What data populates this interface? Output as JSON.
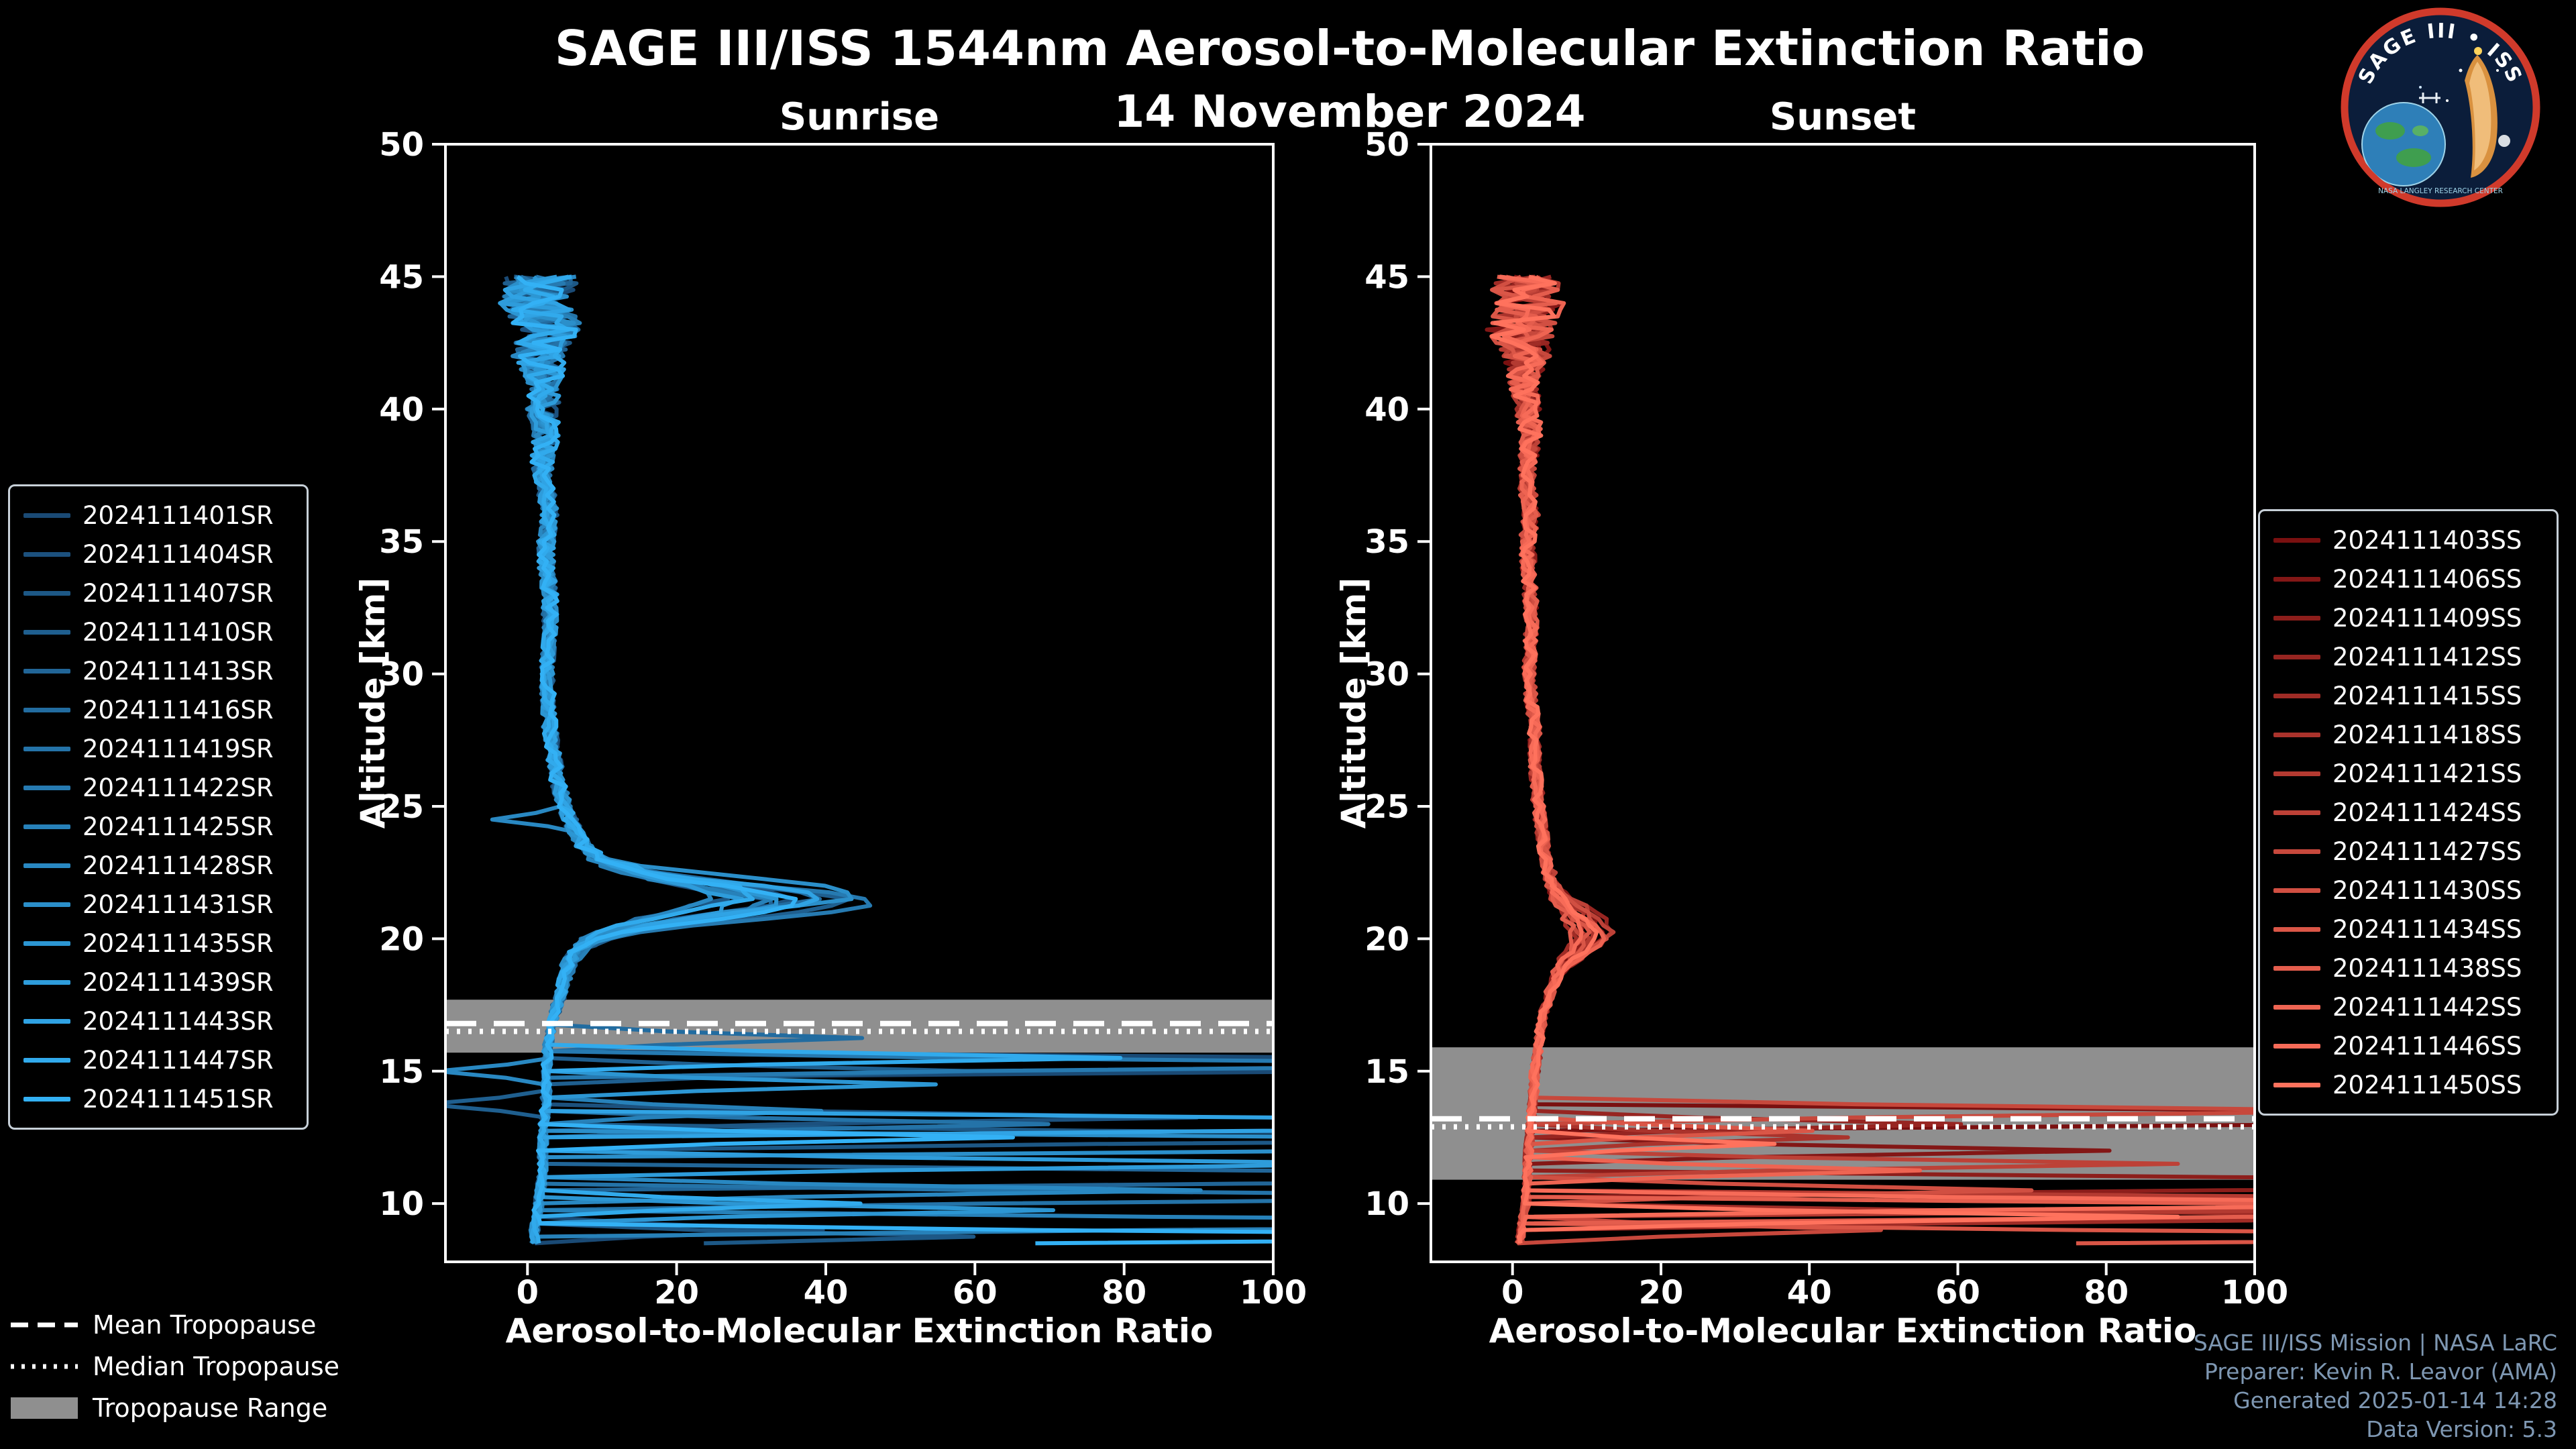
{
  "header": {
    "title": "SAGE III/ISS 1544nm Aerosol-to-Molecular Extinction Ratio",
    "date": "14 November 2024"
  },
  "logo": {
    "title": "SAGE III • ISS",
    "subtitle": "NASA LANGLEY RESEARCH CENTER"
  },
  "footer": {
    "lines": [
      "SAGE III/ISS Mission | NASA LaRC",
      "Preparer: Kevin R. Leavor (AMA)",
      "Generated 2025-01-14 14:28",
      "Data Version: 5.3"
    ]
  },
  "overlay_legend": {
    "items": [
      {
        "label": "Mean Tropopause",
        "style": "dashed"
      },
      {
        "label": "Median Tropopause",
        "style": "dotted"
      },
      {
        "label": "Tropopause Range",
        "style": "band"
      }
    ]
  },
  "colors": {
    "background": "#000000",
    "axis": "#ffffff",
    "band": "#8f8f8f",
    "tropopause_line": "#ffffff",
    "footer_text": "#7e97b2"
  },
  "chart_data": [
    {
      "type": "line",
      "title": "Sunrise",
      "xlabel": "Aerosol-to-Molecular Extinction Ratio",
      "ylabel": "Altitude [km]",
      "xlim": [
        -11,
        100
      ],
      "ylim": [
        7.8,
        50
      ],
      "xticks": [
        0,
        20,
        40,
        60,
        80,
        100
      ],
      "yticks": [
        10,
        15,
        20,
        25,
        30,
        35,
        40,
        45,
        50
      ],
      "alt_range": [
        8.5,
        45
      ],
      "peak_width_km": 0.6,
      "tropopause": {
        "mean_km": 16.8,
        "median_km": 16.5,
        "range_km": [
          15.7,
          17.7
        ]
      },
      "base_profile": [
        [
          45,
          2
        ],
        [
          44,
          1
        ],
        [
          43,
          3
        ],
        [
          42,
          1.5
        ],
        [
          41,
          2.5
        ],
        [
          40,
          2
        ],
        [
          39,
          2.5
        ],
        [
          38,
          2
        ],
        [
          37,
          2.5
        ],
        [
          36,
          3
        ],
        [
          35,
          2.5
        ],
        [
          34,
          2.5
        ],
        [
          33,
          3
        ],
        [
          32,
          3
        ],
        [
          31,
          2.8
        ],
        [
          30,
          2.6
        ],
        [
          29,
          2.8
        ],
        [
          28,
          3
        ],
        [
          27,
          3.5
        ],
        [
          26,
          4
        ],
        [
          25,
          5
        ],
        [
          24,
          6.5
        ],
        [
          23.5,
          7.5
        ],
        [
          23,
          9
        ],
        [
          22.5,
          12
        ],
        [
          22,
          16
        ],
        [
          21.5,
          18
        ],
        [
          21,
          14
        ],
        [
          20.5,
          11
        ],
        [
          20,
          8
        ],
        [
          19.5,
          6.5
        ],
        [
          19,
          5.5
        ],
        [
          18,
          4.5
        ],
        [
          17,
          3.5
        ],
        [
          16.5,
          3
        ],
        [
          16,
          2.8
        ],
        [
          15,
          2.5
        ],
        [
          14,
          2.5
        ],
        [
          13,
          2.2
        ],
        [
          12,
          2
        ],
        [
          11,
          2
        ],
        [
          10,
          1.5
        ],
        [
          9,
          1
        ],
        [
          8.5,
          1
        ]
      ],
      "noise_profile": [
        [
          45,
          5
        ],
        [
          43,
          4.5
        ],
        [
          41,
          2.5
        ],
        [
          39,
          1.8
        ],
        [
          37,
          1.2
        ],
        [
          30,
          0.9
        ],
        [
          24,
          1
        ],
        [
          22,
          1.5
        ],
        [
          19,
          1
        ],
        [
          17,
          0.6
        ],
        [
          8.5,
          0.6
        ]
      ],
      "series": [
        {
          "name": "2024111401SR",
          "color": "#1a4a75",
          "peak_alt": 21.2,
          "peak_value": 30,
          "clouds": [
            [
              15.25,
              300
            ],
            [
              9,
              40
            ]
          ],
          "seed": 7
        },
        {
          "name": "2024111404SR",
          "color": "#1c517e",
          "peak_alt": 21.5,
          "peak_value": 36,
          "clouds": [
            [
              13.25,
              90
            ]
          ],
          "seed": 108
        },
        {
          "name": "2024111407SR",
          "color": "#1d5886",
          "peak_alt": 21.7,
          "peak_value": 26,
          "clouds": [
            [
              12.5,
              200
            ],
            [
              8.75,
              60
            ]
          ],
          "seed": 209
        },
        {
          "name": "2024111410SR",
          "color": "#1f5f8f",
          "peak_alt": 21.3,
          "peak_value": 42,
          "clouds": [
            [
              15,
              60
            ],
            [
              13.75,
              -14
            ]
          ],
          "seed": 310
        },
        {
          "name": "2024111413SR",
          "color": "#216597",
          "peak_alt": 21.2,
          "peak_value": 32,
          "clouds": [
            [
              11,
              250
            ]
          ],
          "seed": 411
        },
        {
          "name": "2024111416SR",
          "color": "#226ca0",
          "peak_alt": 21.5,
          "peak_value": 38,
          "clouds": [
            [
              16.25,
              45
            ]
          ],
          "seed": 512
        },
        {
          "name": "2024111419SR",
          "color": "#2473a8",
          "peak_alt": 21.7,
          "peak_value": 28,
          "clouds": [
            [
              13,
              70
            ],
            [
              10.25,
              160
            ]
          ],
          "seed": 613
        },
        {
          "name": "2024111422SR",
          "color": "#267ab1",
          "peak_alt": 21.3,
          "peak_value": 46,
          "clouds": [
            [
              15.25,
              150
            ]
          ],
          "seed": 714
        },
        {
          "name": "2024111425SR",
          "color": "#2781b9",
          "peak_alt": 21.2,
          "peak_value": 31,
          "clouds": [
            [
              13.5,
              40
            ],
            [
              9.25,
              220
            ]
          ],
          "seed": 815
        },
        {
          "name": "2024111428SR",
          "color": "#2988c2",
          "peak_alt": 21.5,
          "peak_value": 25,
          "clouds": [
            [
              10.5,
              90
            ],
            [
              15,
              -12
            ],
            [
              24.5,
              -5
            ]
          ],
          "seed": 916
        },
        {
          "name": "2024111431SR",
          "color": "#2b8fca",
          "peak_alt": 21.7,
          "peak_value": 43,
          "clouds": [
            [
              12.25,
              300
            ]
          ],
          "seed": 1017
        },
        {
          "name": "2024111435SR",
          "color": "#2c96d3",
          "peak_alt": 21.3,
          "peak_value": 34,
          "clouds": [
            [
              14.5,
              55
            ],
            [
              9.75,
              70
            ]
          ],
          "seed": 1118
        },
        {
          "name": "2024111439SR",
          "color": "#2e9cdb",
          "peak_alt": 21.2,
          "peak_value": 27,
          "clouds": [
            [
              11.5,
              120
            ]
          ],
          "seed": 1219
        },
        {
          "name": "2024111443SR",
          "color": "#30a3e4",
          "peak_alt": 21.5,
          "peak_value": 39,
          "clouds": [
            [
              13,
              260
            ]
          ],
          "seed": 1320
        },
        {
          "name": "2024111447SR",
          "color": "#31aaec",
          "peak_alt": 21.7,
          "peak_value": 30,
          "clouds": [
            [
              15.5,
              80
            ],
            [
              10,
              45
            ]
          ],
          "seed": 1421
        },
        {
          "name": "2024111451SR",
          "color": "#33b1f5",
          "peak_alt": 21.3,
          "peak_value": 36,
          "clouds": [
            [
              12.5,
              65
            ],
            [
              8.75,
              180
            ]
          ],
          "seed": 1522
        }
      ]
    },
    {
      "type": "line",
      "title": "Sunset",
      "xlabel": "Aerosol-to-Molecular Extinction Ratio",
      "ylabel": "Altitude [km]",
      "xlim": [
        -11,
        100
      ],
      "ylim": [
        7.8,
        50
      ],
      "xticks": [
        0,
        20,
        40,
        60,
        80,
        100
      ],
      "yticks": [
        10,
        15,
        20,
        25,
        30,
        35,
        40,
        45,
        50
      ],
      "alt_range": [
        8.5,
        45
      ],
      "peak_width_km": 0.9,
      "tropopause": {
        "mean_km": 13.2,
        "median_km": 12.9,
        "range_km": [
          10.9,
          15.9
        ]
      },
      "base_profile": [
        [
          45,
          1.5
        ],
        [
          44,
          2.5
        ],
        [
          43,
          1
        ],
        [
          42,
          2
        ],
        [
          41,
          1.5
        ],
        [
          40,
          2
        ],
        [
          39,
          2.5
        ],
        [
          38,
          2
        ],
        [
          37,
          2
        ],
        [
          36,
          2.5
        ],
        [
          35,
          2
        ],
        [
          34,
          2.2
        ],
        [
          33,
          2.4
        ],
        [
          32,
          2.6
        ],
        [
          31,
          2.4
        ],
        [
          30,
          2.2
        ],
        [
          29,
          2.5
        ],
        [
          28,
          3
        ],
        [
          27,
          3
        ],
        [
          26,
          3.2
        ],
        [
          25,
          3.5
        ],
        [
          24,
          4
        ],
        [
          23,
          4.5
        ],
        [
          22,
          5
        ],
        [
          21.5,
          5.5
        ],
        [
          21,
          6.5
        ],
        [
          20.5,
          7.5
        ],
        [
          20,
          8
        ],
        [
          19.5,
          7
        ],
        [
          19,
          6
        ],
        [
          18,
          5
        ],
        [
          17,
          4
        ],
        [
          16,
          3.5
        ],
        [
          15,
          3
        ],
        [
          14,
          2.8
        ],
        [
          13,
          2.5
        ],
        [
          12,
          2.2
        ],
        [
          11,
          2
        ],
        [
          10,
          1.8
        ],
        [
          9,
          1.2
        ],
        [
          8.5,
          1
        ]
      ],
      "noise_profile": [
        [
          45,
          5
        ],
        [
          43,
          4.5
        ],
        [
          41,
          2
        ],
        [
          38,
          1.2
        ],
        [
          30,
          0.8
        ],
        [
          22,
          0.8
        ],
        [
          18,
          0.6
        ],
        [
          8.5,
          0.5
        ]
      ],
      "series": [
        {
          "name": "2024111403SS",
          "color": "#7a1010",
          "peak_alt": 20,
          "peak_value": 10,
          "clouds": [
            [
              13.25,
              300
            ]
          ],
          "seed": 5
        },
        {
          "name": "2024111406SS",
          "color": "#831716",
          "peak_alt": 20.3,
          "peak_value": 12,
          "clouds": [
            [
              12,
              80
            ]
          ],
          "seed": 136
        },
        {
          "name": "2024111409SS",
          "color": "#8d1e1b",
          "peak_alt": 20.1,
          "peak_value": 9,
          "clouds": [
            [
              10.75,
              250
            ]
          ],
          "seed": 267
        },
        {
          "name": "2024111412SS",
          "color": "#972521",
          "peak_alt": 20.4,
          "peak_value": 13,
          "clouds": [
            [
              13,
              60
            ]
          ],
          "seed": 398
        },
        {
          "name": "2024111415SS",
          "color": "#a02c26",
          "peak_alt": 20,
          "peak_value": 8,
          "clouds": [
            [
              9.5,
              150
            ]
          ],
          "seed": 529
        },
        {
          "name": "2024111418SS",
          "color": "#aa332c",
          "peak_alt": 20.3,
          "peak_value": 11,
          "clouds": [
            [
              12.5,
              45
            ]
          ],
          "seed": 660
        },
        {
          "name": "2024111421SS",
          "color": "#b43a31",
          "peak_alt": 20.1,
          "peak_value": 10,
          "clouds": [
            [
              10,
              300
            ]
          ],
          "seed": 791
        },
        {
          "name": "2024111424SS",
          "color": "#bd4137",
          "peak_alt": 20.4,
          "peak_value": 13,
          "clouds": [
            [
              11.5,
              90
            ]
          ],
          "seed": 922
        },
        {
          "name": "2024111427SS",
          "color": "#c7483c",
          "peak_alt": 20,
          "peak_value": 9,
          "clouds": [
            [
              13.5,
              120
            ],
            [
              9,
              50
            ]
          ],
          "seed": 1053
        },
        {
          "name": "2024111430SS",
          "color": "#d14f42",
          "peak_alt": 20.3,
          "peak_value": 12,
          "clouds": [
            [
              10.5,
              70
            ]
          ],
          "seed": 1184
        },
        {
          "name": "2024111434SS",
          "color": "#da5647",
          "peak_alt": 20.1,
          "peak_value": 10,
          "clouds": [
            [
              12.75,
              40
            ],
            [
              8.75,
              200
            ]
          ],
          "seed": 1315
        },
        {
          "name": "2024111438SS",
          "color": "#e45d4d",
          "peak_alt": 20.4,
          "peak_value": 8,
          "clouds": [
            [
              9.75,
              260
            ]
          ],
          "seed": 1446
        },
        {
          "name": "2024111442SS",
          "color": "#ee6452",
          "peak_alt": 20,
          "peak_value": 12,
          "clouds": [
            [
              11.25,
              55
            ]
          ],
          "seed": 1577
        },
        {
          "name": "2024111446SS",
          "color": "#f76b58",
          "peak_alt": 20.3,
          "peak_value": 9,
          "clouds": [
            [
              10,
              150
            ]
          ],
          "seed": 1708
        },
        {
          "name": "2024111450SS",
          "color": "#ff725d",
          "peak_alt": 20.1,
          "peak_value": 11,
          "clouds": [
            [
              9.5,
              90
            ],
            [
              12.25,
              35
            ]
          ],
          "seed": 1839
        }
      ]
    }
  ]
}
